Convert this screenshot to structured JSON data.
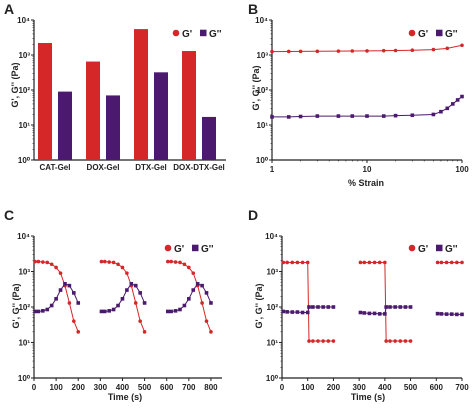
{
  "colors": {
    "gprime": "#d62728",
    "gdouble": "#4b1a6e"
  },
  "chart_data": [
    {
      "panel": "A",
      "type": "bar",
      "categories": [
        "CAT-Gel",
        "DOX-Gel",
        "DTX-Gel",
        "DOX-DTX-Gel"
      ],
      "series": [
        {
          "name": "G'",
          "values": [
            2200,
            650,
            5500,
            1300
          ]
        },
        {
          "name": "G''",
          "values": [
            90,
            70,
            320,
            17
          ]
        }
      ],
      "y_scale": "log",
      "ylim": [
        1,
        10000
      ],
      "ylabel": "G', G'' (Pa)",
      "xlabel": "",
      "legend": "top-right"
    },
    {
      "panel": "B",
      "type": "line",
      "x_scale": "log",
      "xlim": [
        1,
        100
      ],
      "y_scale": "log",
      "ylim": [
        1,
        10000
      ],
      "xlabel": "% Strain",
      "ylabel": "G', G'' (Pa)",
      "legend": "top-right",
      "series": [
        {
          "name": "G'",
          "x": [
            1,
            1.5,
            2,
            3,
            5,
            7,
            10,
            15,
            20,
            30,
            50,
            70,
            100
          ],
          "y": [
            1250,
            1260,
            1270,
            1280,
            1290,
            1300,
            1310,
            1330,
            1340,
            1370,
            1430,
            1550,
            1900
          ]
        },
        {
          "name": "G''",
          "x": [
            1,
            1.5,
            2,
            3,
            5,
            7,
            10,
            15,
            20,
            30,
            50,
            60,
            70,
            80,
            90,
            100
          ],
          "y": [
            17,
            17,
            17.5,
            18,
            18,
            18,
            18,
            18,
            18.5,
            19,
            20,
            24,
            30,
            40,
            52,
            65
          ]
        }
      ]
    },
    {
      "panel": "C",
      "type": "line",
      "xlim": [
        0,
        850
      ],
      "y_scale": "log",
      "ylim": [
        1,
        10000
      ],
      "xlabel": "Time (s)",
      "ylabel": "G', G'' (Pa)",
      "legend": "top-right",
      "series": [
        {
          "name": "G'",
          "segments": [
            {
              "x": [
                5,
                20,
                40,
                60,
                80,
                100,
                120,
                140,
                160,
                180,
                200
              ],
              "y": [
                1900,
                1900,
                1850,
                1800,
                1600,
                1300,
                900,
                400,
                130,
                40,
                20
              ]
            },
            {
              "x": [
                305,
                320,
                340,
                360,
                380,
                400,
                420,
                440,
                460,
                480,
                500
              ],
              "y": [
                1900,
                1900,
                1850,
                1800,
                1600,
                1300,
                900,
                400,
                130,
                40,
                20
              ]
            },
            {
              "x": [
                605,
                620,
                640,
                660,
                680,
                700,
                720,
                740,
                760,
                780,
                800
              ],
              "y": [
                1900,
                1900,
                1850,
                1800,
                1600,
                1300,
                900,
                400,
                130,
                40,
                20
              ]
            }
          ]
        },
        {
          "name": "G''",
          "segments": [
            {
              "x": [
                5,
                20,
                40,
                60,
                80,
                100,
                120,
                140,
                160,
                180,
                200
              ],
              "y": [
                75,
                75,
                78,
                85,
                110,
                170,
                300,
                450,
                400,
                250,
                130
              ]
            },
            {
              "x": [
                305,
                320,
                340,
                360,
                380,
                400,
                420,
                440,
                460,
                480,
                500
              ],
              "y": [
                75,
                75,
                78,
                85,
                110,
                170,
                300,
                450,
                400,
                250,
                130
              ]
            },
            {
              "x": [
                605,
                620,
                640,
                660,
                680,
                700,
                720,
                740,
                760,
                780,
                800
              ],
              "y": [
                75,
                75,
                78,
                85,
                110,
                170,
                300,
                450,
                400,
                250,
                130
              ]
            }
          ]
        }
      ]
    },
    {
      "panel": "D",
      "type": "line",
      "xlim": [
        0,
        700
      ],
      "y_scale": "log",
      "ylim": [
        1,
        10000
      ],
      "xlabel": "Time (s)",
      "ylabel": "G', G'' (Pa)",
      "legend": "top-right",
      "series": [
        {
          "name": "G'",
          "segments": [
            {
              "x": [
                5,
                20,
                40,
                60,
                80,
                100,
                105,
                120,
                140,
                160,
                180,
                200
              ],
              "y": [
                1800,
                1800,
                1800,
                1800,
                1800,
                1800,
                11,
                11,
                11,
                11,
                11,
                11
              ]
            },
            {
              "x": [
                305,
                320,
                340,
                360,
                380,
                400,
                405,
                420,
                440,
                460,
                480,
                500
              ],
              "y": [
                1800,
                1800,
                1800,
                1800,
                1800,
                1800,
                11,
                11,
                11,
                11,
                11,
                11
              ]
            },
            {
              "x": [
                605,
                620,
                640,
                660,
                680,
                700
              ],
              "y": [
                1800,
                1800,
                1800,
                1800,
                1800,
                1800
              ]
            }
          ]
        },
        {
          "name": "G''",
          "segments": [
            {
              "x": [
                5,
                20,
                40,
                60,
                80,
                100,
                105,
                120,
                140,
                160,
                180,
                200
              ],
              "y": [
                75,
                73,
                72,
                72,
                70,
                70,
                100,
                100,
                100,
                100,
                100,
                100
              ]
            },
            {
              "x": [
                305,
                320,
                340,
                360,
                380,
                400,
                405,
                420,
                440,
                460,
                480,
                500
              ],
              "y": [
                70,
                68,
                66,
                66,
                64,
                64,
                100,
                100,
                100,
                100,
                100,
                100
              ]
            },
            {
              "x": [
                605,
                620,
                640,
                660,
                680,
                700
              ],
              "y": [
                65,
                64,
                63,
                63,
                62,
                62
              ]
            }
          ]
        }
      ]
    }
  ],
  "ticks": {
    "log_y": [
      "10⁰",
      "10¹",
      "10²",
      "10³",
      "10⁴"
    ],
    "b_x": [
      "1",
      "10",
      "100"
    ],
    "c_x": [
      "0",
      "100",
      "200",
      "300",
      "400",
      "500",
      "600",
      "700",
      "800"
    ],
    "d_x": [
      "0",
      "100",
      "200",
      "300",
      "400",
      "500",
      "600",
      "700"
    ]
  }
}
